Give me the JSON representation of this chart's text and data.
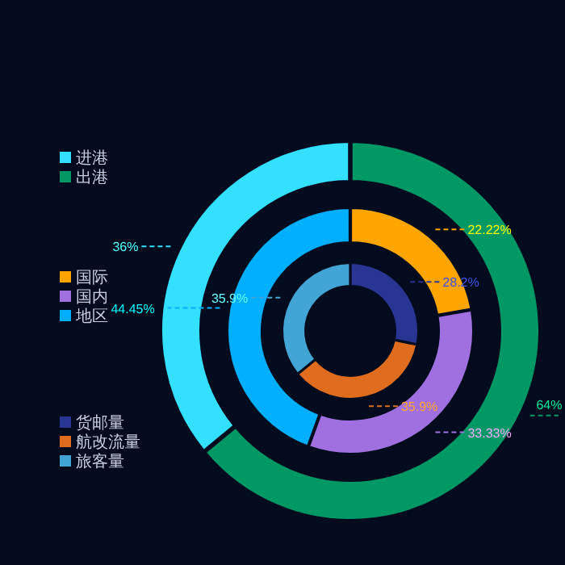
{
  "chart_data": [
    {
      "type": "donut",
      "legend": "left",
      "categories": [
        "进港",
        "出港"
      ],
      "values": [
        36,
        64
      ],
      "colors": [
        "#33e0ff",
        "#009966"
      ],
      "value_labels": [
        "36%",
        "64%"
      ]
    },
    {
      "type": "donut",
      "legend": "left",
      "categories": [
        "国际",
        "国内",
        "地区"
      ],
      "values": [
        22.22,
        33.33,
        44.45
      ],
      "colors": [
        "#ffa500",
        "#a070e0",
        "#00b0ff"
      ],
      "value_labels": [
        "22.22%",
        "33.33%",
        "44.45%"
      ]
    },
    {
      "type": "donut",
      "legend": "left",
      "categories": [
        "货邮量",
        "航改流量",
        "旅客量"
      ],
      "values": [
        28.2,
        35.9,
        35.9
      ],
      "colors": [
        "#283593",
        "#e06c1e",
        "#42a5d5"
      ],
      "value_labels": [
        "28.2%",
        "35.9%",
        "35.9%"
      ]
    }
  ]
}
